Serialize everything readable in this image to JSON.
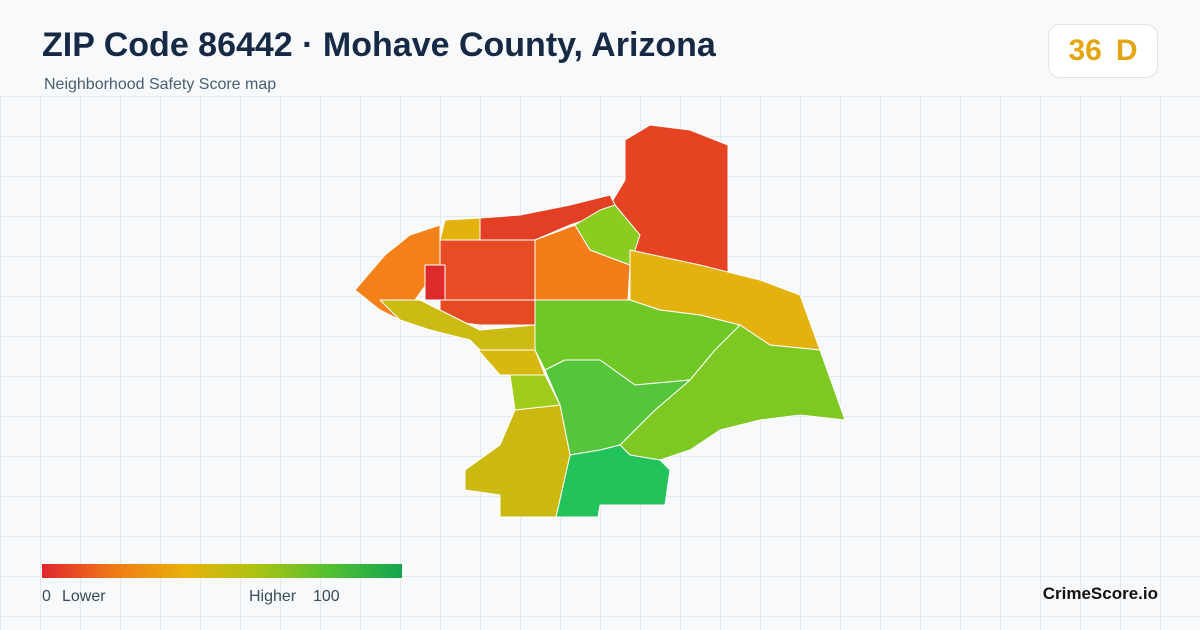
{
  "header": {
    "title": "ZIP Code 86442 · Mohave County, Arizona",
    "subtitle": "Neighborhood Safety Score map"
  },
  "score": {
    "value": 36,
    "grade": "D"
  },
  "legend": {
    "min": 0,
    "min_label": "Lower",
    "max_label": "Higher",
    "max": 100
  },
  "footer": {
    "brand": "CrimeScore.io"
  }
}
